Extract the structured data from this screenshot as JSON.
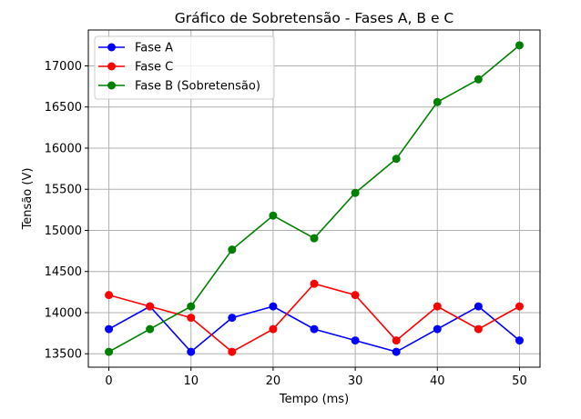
{
  "chart_data": {
    "type": "line",
    "title": "Gráfico de Sobretensão - Fases A, B e C",
    "xlabel": "Tempo (ms)",
    "ylabel": "Tensão (V)",
    "x": [
      0,
      5,
      10,
      15,
      20,
      25,
      30,
      35,
      40,
      45,
      50
    ],
    "series": [
      {
        "name": "Fase A",
        "color": "#0000ff",
        "marker": "circle",
        "values": [
          13800,
          14076,
          13524,
          13938,
          14076,
          13800,
          13662,
          13524,
          13800,
          14076,
          13662
        ]
      },
      {
        "name": "Fase C",
        "color": "#ff0000",
        "marker": "circle",
        "values": [
          14214,
          14076,
          13938,
          13524,
          13800,
          14352,
          14214,
          13662,
          14076,
          13800,
          14076
        ]
      },
      {
        "name": "Fase B (Sobretensão)",
        "color": "#008000",
        "marker": "circle",
        "values": [
          13524,
          13800,
          14076,
          14766,
          15180,
          14904,
          15456,
          15870,
          16560,
          16836,
          17250
        ]
      }
    ],
    "xticks": [
      0,
      10,
      20,
      30,
      40,
      50
    ],
    "yticks": [
      13500,
      14000,
      14500,
      15000,
      15500,
      16000,
      16500,
      17000
    ],
    "xlim": [
      -2.5,
      52.5
    ],
    "ylim": [
      13337,
      17436
    ],
    "grid": true,
    "legend_position": "upper left"
  }
}
